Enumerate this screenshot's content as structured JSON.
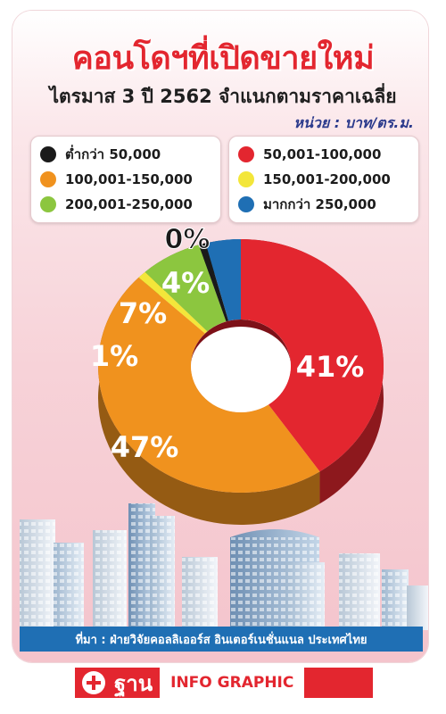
{
  "title": "คอนโดฯที่เปิดขายใหม่",
  "subtitle": "ไตรมาส 3 ปี 2562 จำแนกตามราคาเฉลี่ย",
  "unit": "หน่วย  :  บาท/ตร.ม.",
  "source": "ที่มา  :  ฝ่ายวิจัยคอลลิเออร์ส  อินเตอร์เนชั่นแนล  ประเทศไทย",
  "brand": {
    "logo": "ฐาน",
    "tag": "INFO GRAPHIC"
  },
  "chart_data": {
    "type": "pie",
    "style": "3d-donut",
    "legend_placement": "top",
    "slices": [
      {
        "label": "ต่ำกว่า  50,000",
        "value": 0,
        "value_label": "0%",
        "color": "#1a1a1a"
      },
      {
        "label": "50,001-100,000",
        "value": 41,
        "value_label": "41%",
        "color": "#e3262f"
      },
      {
        "label": "100,001-150,000",
        "value": 47,
        "value_label": "47%",
        "color": "#f0921e"
      },
      {
        "label": "150,001-200,000",
        "value": 1,
        "value_label": "1%",
        "color": "#f3e63a"
      },
      {
        "label": "200,001-250,000",
        "value": 7,
        "value_label": "7%",
        "color": "#8cc63f"
      },
      {
        "label": "มากกว่า  250,000",
        "value": 4,
        "value_label": "4%",
        "color": "#1f6fb4"
      }
    ]
  }
}
